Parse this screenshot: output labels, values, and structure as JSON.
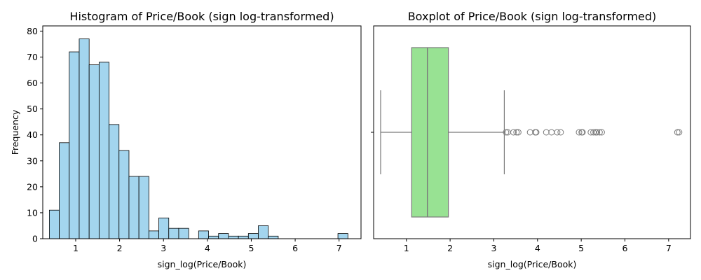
{
  "chart_data": [
    {
      "type": "histogram",
      "title": "Histogram of Price/Book (sign log-transformed)",
      "xlabel": "sign_log(Price/Book)",
      "ylabel": "Frequency",
      "xlim": [
        0.25,
        7.5
      ],
      "ylim": [
        0,
        82
      ],
      "xticks": [
        1,
        2,
        3,
        4,
        5,
        6,
        7
      ],
      "yticks": [
        0,
        10,
        20,
        30,
        40,
        50,
        60,
        70,
        80
      ],
      "bin_start": 0.4,
      "bin_width": 0.2267,
      "values": [
        11,
        37,
        72,
        77,
        67,
        68,
        44,
        34,
        24,
        24,
        3,
        8,
        4,
        4,
        0,
        3,
        1,
        2,
        1,
        1,
        2,
        5,
        1,
        0,
        0,
        0,
        0,
        0,
        0,
        2
      ],
      "bar_color": "#a3d5ee",
      "edge_color": "#000000",
      "grid": false
    },
    {
      "type": "boxplot",
      "title": "Boxplot of Price/Book (sign log-transformed)",
      "xlabel": "sign_log(Price/Book)",
      "xlim": [
        0.25,
        7.5
      ],
      "xticks": [
        1,
        2,
        3,
        4,
        5,
        6,
        7
      ],
      "whisker_low": 0.41,
      "q1": 1.12,
      "median": 1.48,
      "q3": 1.96,
      "whisker_high": 3.24,
      "outliers": [
        3.28,
        3.32,
        3.45,
        3.52,
        3.56,
        3.83,
        3.95,
        3.97,
        4.2,
        4.32,
        4.45,
        4.53,
        4.95,
        5.01,
        5.03,
        5.22,
        5.28,
        5.33,
        5.36,
        5.42,
        5.47,
        7.2,
        7.24
      ],
      "box_color": "#98e293",
      "line_color": "#7a7a7a",
      "grid": false
    }
  ]
}
